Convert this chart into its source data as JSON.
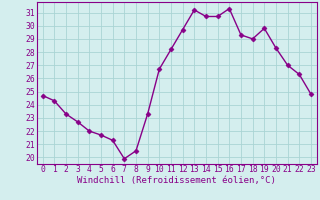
{
  "x": [
    0,
    1,
    2,
    3,
    4,
    5,
    6,
    7,
    8,
    9,
    10,
    11,
    12,
    13,
    14,
    15,
    16,
    17,
    18,
    19,
    20,
    21,
    22,
    23
  ],
  "y": [
    24.7,
    24.3,
    23.3,
    22.7,
    22.0,
    21.7,
    21.3,
    19.9,
    20.5,
    23.3,
    26.7,
    28.2,
    29.7,
    31.2,
    30.7,
    30.7,
    31.3,
    29.3,
    29.0,
    29.8,
    28.3,
    27.0,
    26.3,
    24.8
  ],
  "line_color": "#880088",
  "marker": "D",
  "marker_size": 2.5,
  "bg_color": "#d4eeee",
  "grid_color": "#aad4d4",
  "xlabel": "Windchill (Refroidissement éolien,°C)",
  "ylim": [
    19.5,
    31.8
  ],
  "xlim": [
    -0.5,
    23.5
  ],
  "yticks": [
    20,
    21,
    22,
    23,
    24,
    25,
    26,
    27,
    28,
    29,
    30,
    31
  ],
  "xticks": [
    0,
    1,
    2,
    3,
    4,
    5,
    6,
    7,
    8,
    9,
    10,
    11,
    12,
    13,
    14,
    15,
    16,
    17,
    18,
    19,
    20,
    21,
    22,
    23
  ],
  "tick_label_color": "#880088",
  "xlabel_color": "#880088",
  "xlabel_fontsize": 6.5,
  "tick_fontsize": 5.8,
  "line_width": 1.0,
  "spine_color": "#880088"
}
